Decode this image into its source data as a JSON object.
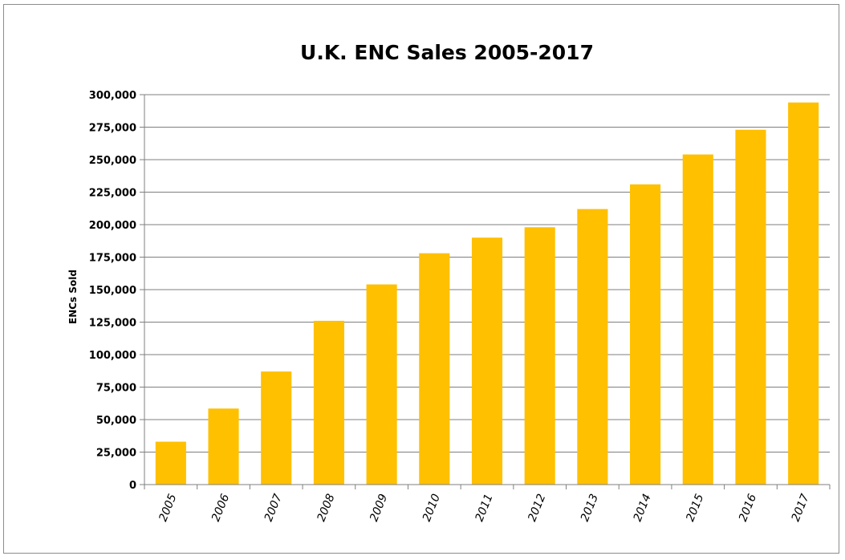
{
  "chart_data": {
    "type": "bar",
    "title": "U.K. ENC Sales 2005-2017",
    "xlabel": "",
    "ylabel": "ENCs Sold",
    "categories": [
      "2005",
      "2006",
      "2007",
      "2008",
      "2009",
      "2010",
      "2011",
      "2012",
      "2013",
      "2014",
      "2015",
      "2016",
      "2017"
    ],
    "values": [
      33000,
      58500,
      87000,
      126000,
      154000,
      178000,
      190000,
      198000,
      212000,
      231000,
      254000,
      273000,
      294000
    ],
    "ylim": [
      0,
      300000
    ],
    "yticks": [
      0,
      25000,
      50000,
      75000,
      100000,
      125000,
      150000,
      175000,
      200000,
      225000,
      250000,
      275000,
      300000
    ],
    "ytick_labels": [
      "0",
      "25,000",
      "50,000",
      "75,000",
      "100,000",
      "125,000",
      "150,000",
      "175,000",
      "200,000",
      "225,000",
      "250,000",
      "275,000",
      "300,000"
    ],
    "grid": true,
    "legend": "none",
    "colors": {
      "bar": "#FFC000",
      "gridline": "#7f7f7f",
      "axis": "#7f7f7f",
      "frame": "#8c8c8c"
    }
  }
}
